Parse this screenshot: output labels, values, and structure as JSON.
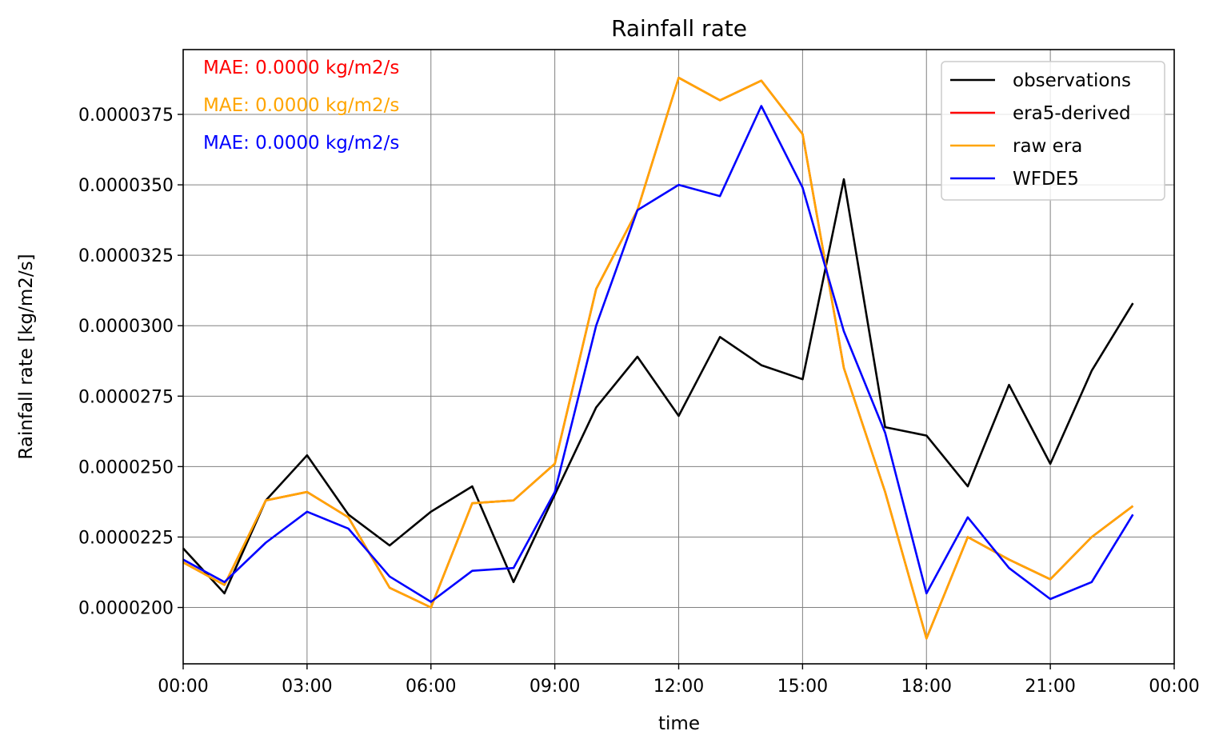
{
  "chart_data": {
    "type": "line",
    "title": "Rainfall rate",
    "xlabel": "time",
    "ylabel": "Rainfall rate [kg/m2/s]",
    "x": [
      "00:00",
      "01:00",
      "02:00",
      "03:00",
      "04:00",
      "05:00",
      "06:00",
      "07:00",
      "08:00",
      "09:00",
      "10:00",
      "11:00",
      "12:00",
      "13:00",
      "14:00",
      "15:00",
      "16:00",
      "17:00",
      "18:00",
      "19:00",
      "20:00",
      "21:00",
      "22:00",
      "23:00"
    ],
    "xlim_hours": [
      0,
      24
    ],
    "xticks": [
      {
        "hour": 0,
        "label": "00:00"
      },
      {
        "hour": 3,
        "label": "03:00"
      },
      {
        "hour": 6,
        "label": "06:00"
      },
      {
        "hour": 9,
        "label": "09:00"
      },
      {
        "hour": 12,
        "label": "12:00"
      },
      {
        "hour": 15,
        "label": "15:00"
      },
      {
        "hour": 18,
        "label": "18:00"
      },
      {
        "hour": 21,
        "label": "21:00"
      },
      {
        "hour": 24,
        "label": "00:00"
      }
    ],
    "ylim": [
      1.8e-05,
      3.98e-05
    ],
    "yticks": [
      {
        "value": 2e-05,
        "label": "0.0000200"
      },
      {
        "value": 2.25e-05,
        "label": "0.0000225"
      },
      {
        "value": 2.5e-05,
        "label": "0.0000250"
      },
      {
        "value": 2.75e-05,
        "label": "0.0000275"
      },
      {
        "value": 3e-05,
        "label": "0.0000300"
      },
      {
        "value": 3.25e-05,
        "label": "0.0000325"
      },
      {
        "value": 3.5e-05,
        "label": "0.0000350"
      },
      {
        "value": 3.75e-05,
        "label": "0.0000375"
      }
    ],
    "grid": true,
    "legend_position": "top-right",
    "series": [
      {
        "name": "observations",
        "color": "#000000",
        "values": [
          2.21e-05,
          2.05e-05,
          2.38e-05,
          2.54e-05,
          2.33e-05,
          2.22e-05,
          2.34e-05,
          2.43e-05,
          2.09e-05,
          2.4e-05,
          2.71e-05,
          2.89e-05,
          2.68e-05,
          2.96e-05,
          2.86e-05,
          2.81e-05,
          3.52e-05,
          2.64e-05,
          2.61e-05,
          2.43e-05,
          2.79e-05,
          2.51e-05,
          2.84e-05,
          3.08e-05
        ]
      },
      {
        "name": "era5-derived",
        "color": "#ff0000",
        "values": [
          2.16e-05,
          2.08e-05,
          2.38e-05,
          2.41e-05,
          2.32e-05,
          2.07e-05,
          2e-05,
          2.37e-05,
          2.38e-05,
          2.51e-05,
          3.13e-05,
          3.41e-05,
          3.88e-05,
          3.8e-05,
          3.87e-05,
          3.68e-05,
          2.85e-05,
          2.41e-05,
          1.89e-05,
          2.25e-05,
          2.17e-05,
          2.1e-05,
          2.25e-05,
          2.36e-05
        ]
      },
      {
        "name": "raw era",
        "color": "#ffa500",
        "values": [
          2.16e-05,
          2.08e-05,
          2.38e-05,
          2.41e-05,
          2.32e-05,
          2.07e-05,
          2e-05,
          2.37e-05,
          2.38e-05,
          2.51e-05,
          3.13e-05,
          3.41e-05,
          3.88e-05,
          3.8e-05,
          3.87e-05,
          3.68e-05,
          2.85e-05,
          2.41e-05,
          1.89e-05,
          2.25e-05,
          2.17e-05,
          2.1e-05,
          2.25e-05,
          2.36e-05
        ]
      },
      {
        "name": "WFDE5",
        "color": "#0000ff",
        "values": [
          2.17e-05,
          2.09e-05,
          2.23e-05,
          2.34e-05,
          2.28e-05,
          2.11e-05,
          2.02e-05,
          2.13e-05,
          2.14e-05,
          2.41e-05,
          3e-05,
          3.41e-05,
          3.5e-05,
          3.46e-05,
          3.78e-05,
          3.49e-05,
          2.98e-05,
          2.62e-05,
          2.05e-05,
          2.32e-05,
          2.14e-05,
          2.03e-05,
          2.09e-05,
          2.33e-05
        ]
      }
    ],
    "annotations": [
      {
        "text": "MAE: 0.0000 kg/m2/s",
        "color": "#ff0000"
      },
      {
        "text": "MAE: 0.0000 kg/m2/s",
        "color": "#ffa500"
      },
      {
        "text": "MAE: 0.0000 kg/m2/s",
        "color": "#0000ff"
      }
    ]
  }
}
